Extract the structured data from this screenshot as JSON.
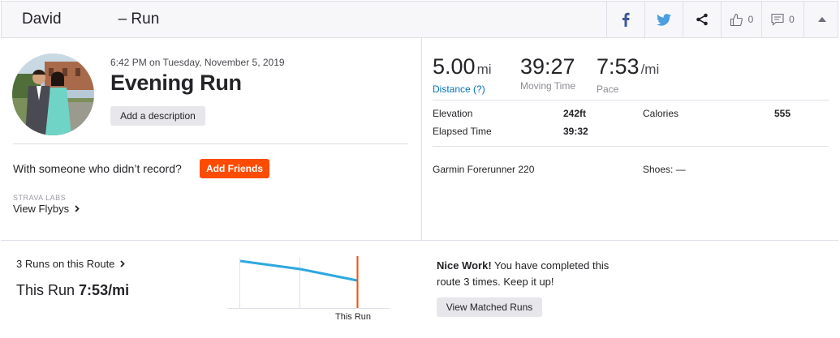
{
  "header": {
    "athlete_name": "David",
    "activity_type": "– Run",
    "kudos_count": "0",
    "comments_count": "0"
  },
  "activity": {
    "timestamp": "6:42 PM on Tuesday, November 5, 2019",
    "title": "Evening Run",
    "add_description_label": "Add a description"
  },
  "friends": {
    "prompt": "With someone who didn’t record?",
    "button_label": "Add Friends"
  },
  "labs": {
    "title": "STRAVA LABS",
    "flybys_label": "View Flybys"
  },
  "stats": {
    "distance": {
      "value": "5.00",
      "unit": "mi",
      "label": "Distance (?)"
    },
    "moving_time": {
      "value": "39:27",
      "label": "Moving Time"
    },
    "pace": {
      "value": "7:53",
      "unit": "/mi",
      "label": "Pace"
    }
  },
  "details": {
    "elevation_label": "Elevation",
    "elevation_value": "242ft",
    "calories_label": "Calories",
    "calories_value": "555",
    "elapsed_label": "Elapsed Time",
    "elapsed_value": "39:32",
    "device": "Garmin Forerunner 220",
    "shoes_label": "Shoes:",
    "shoes_value": "—"
  },
  "route": {
    "runs_label": "3 Runs on this Route",
    "this_run_prefix": "This Run",
    "this_run_pace": "7:53/mi",
    "chart_marker_label": "This Run",
    "nice_work_bold": "Nice Work!",
    "nice_work_text": " You have completed this route 3 times. Keep it up!",
    "view_matched_label": "View Matched Runs"
  },
  "colors": {
    "accent": "#fc4c02",
    "link": "#0073bb",
    "chart_line": "#2ea8e0",
    "facebook": "#3b5998",
    "twitter": "#1da1f2"
  },
  "icons": {
    "facebook": "facebook-icon",
    "twitter": "twitter-icon",
    "share": "share-icon",
    "kudos": "thumbs-up-icon",
    "comments": "comment-icon",
    "collapse": "caret-up-icon"
  }
}
